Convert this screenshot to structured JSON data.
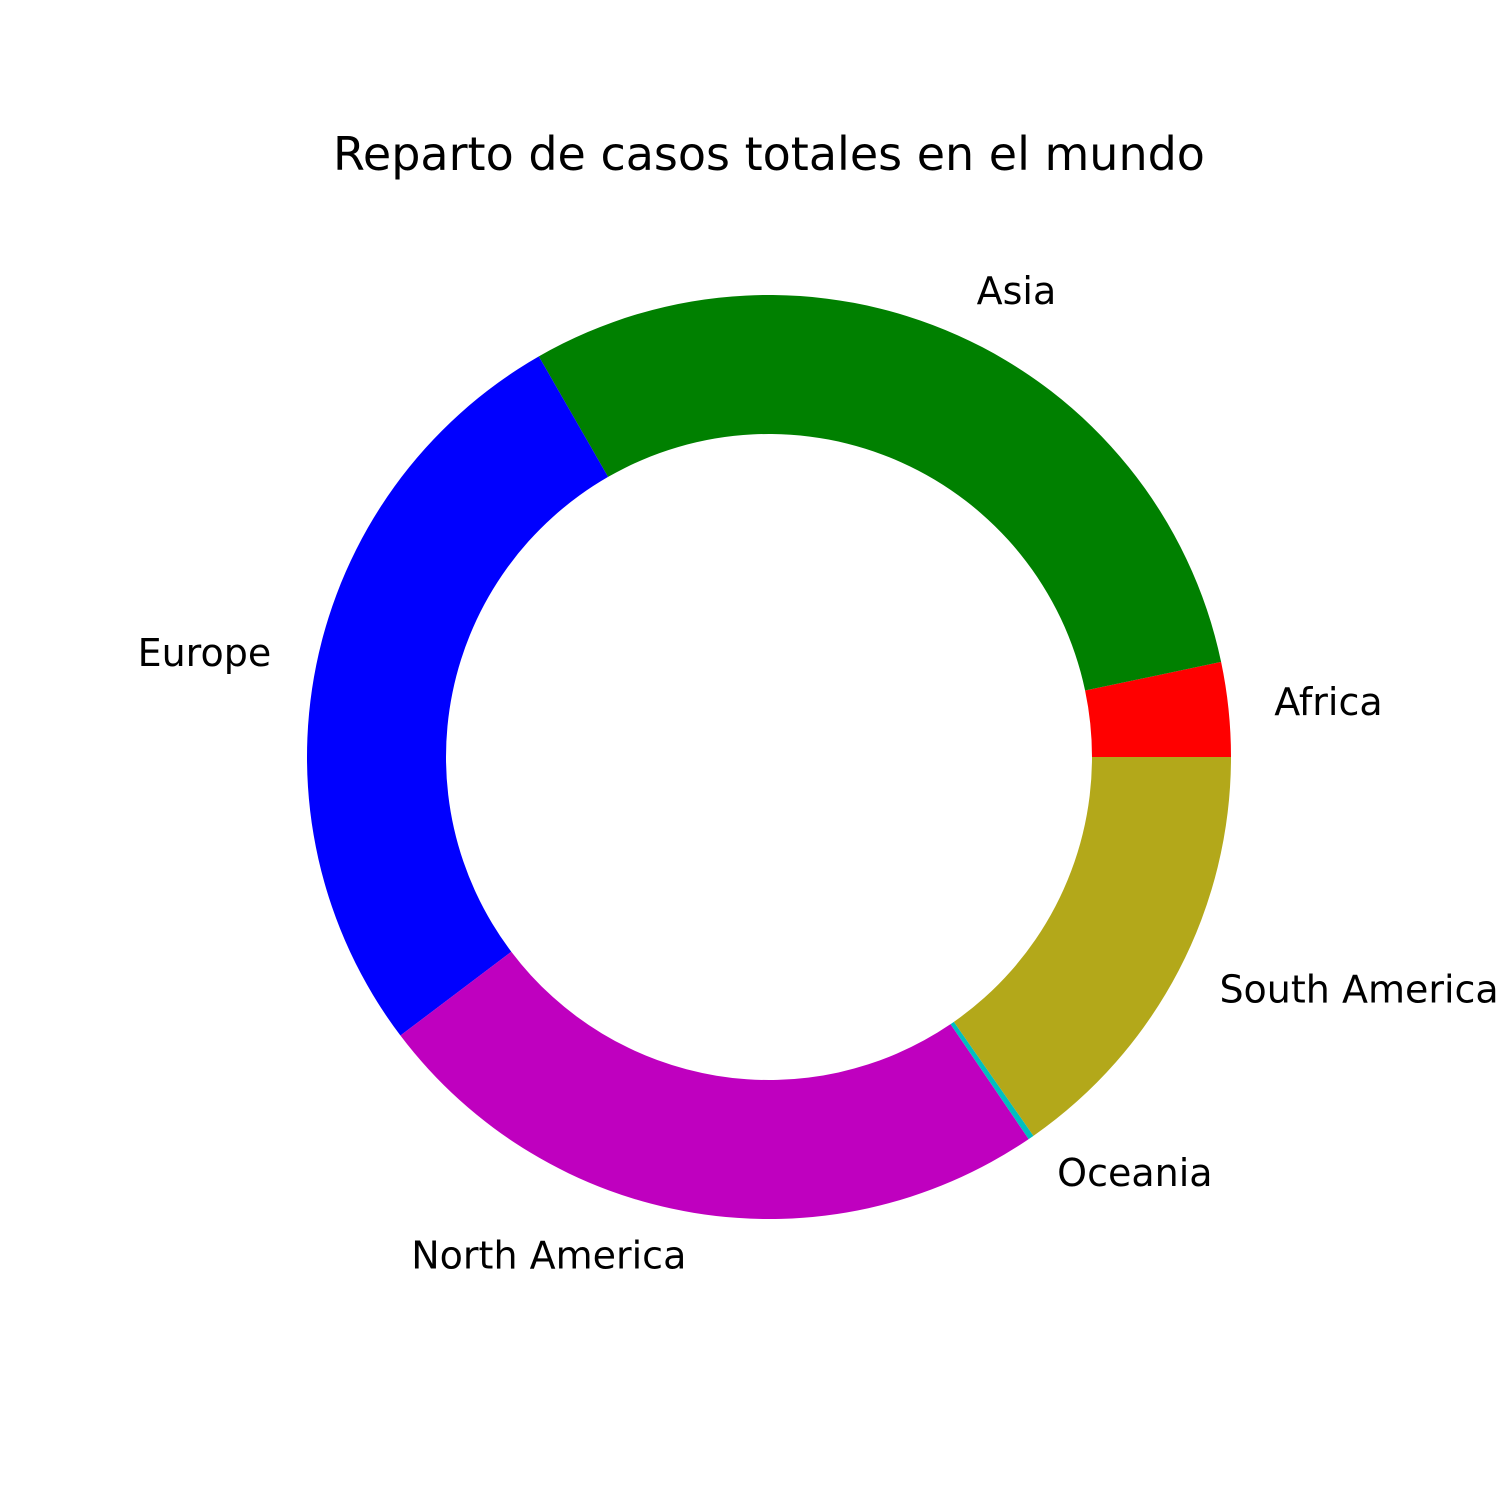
{
  "chart_data": {
    "type": "pie",
    "donut": true,
    "title": "Reparto de casos totales en el mundo",
    "start_angle_deg": 0,
    "direction": "counterclockwise",
    "slices": [
      {
        "label": "Africa",
        "value": 3.3,
        "color": "#ff0000"
      },
      {
        "label": "Asia",
        "value": 30.0,
        "color": "#008000"
      },
      {
        "label": "Europe",
        "value": 27.0,
        "color": "#0000ff"
      },
      {
        "label": "North America",
        "value": 24.2,
        "color": "#bf00bf"
      },
      {
        "label": "Oceania",
        "value": 0.2,
        "color": "#00bfbf"
      },
      {
        "label": "South America",
        "value": 15.3,
        "color": "#b3a81a"
      }
    ]
  }
}
